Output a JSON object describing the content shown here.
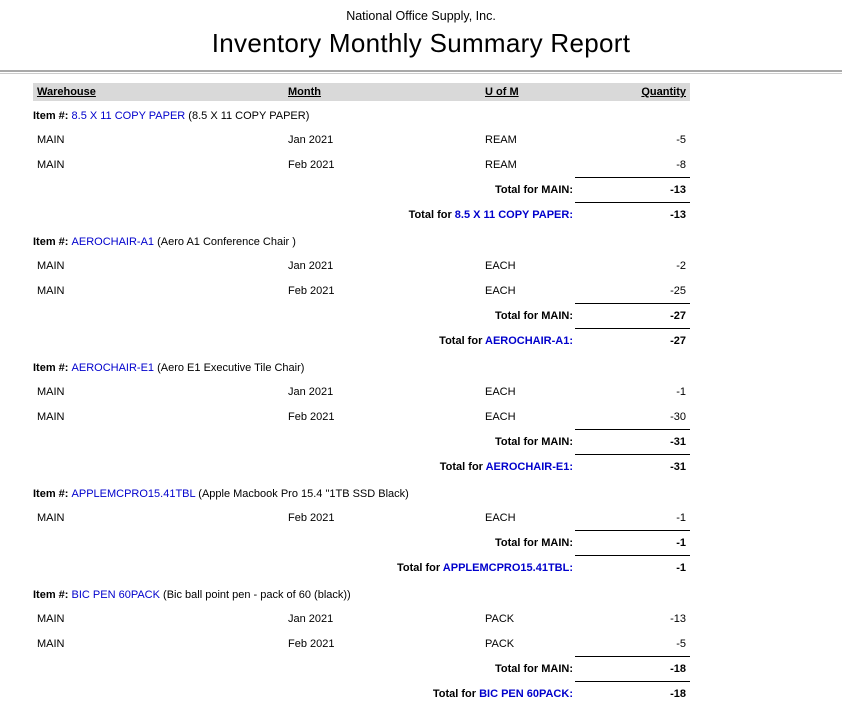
{
  "report": {
    "company": "National Office Supply, Inc.",
    "title": "Inventory Monthly Summary Report",
    "columns": [
      "Warehouse",
      "Month",
      "U of M",
      "Quantity"
    ],
    "labels": {
      "item_prefix": "Item #:",
      "total_for": "Total for",
      "colon": ":"
    },
    "colors": {
      "item_code_blue": "#0000CC",
      "header_bg": "#D9D9D9"
    },
    "groups": [
      {
        "code": "8.5 X 11 COPY PAPER",
        "desc": "(8.5 X 11 COPY PAPER)",
        "warehouse": "MAIN",
        "rows": [
          {
            "warehouse": "MAIN",
            "month": "Jan 2021",
            "uom": "REAM",
            "qty": "-5"
          },
          {
            "warehouse": "MAIN",
            "month": "Feb 2021",
            "uom": "REAM",
            "qty": "-8"
          }
        ],
        "warehouse_total": "-13",
        "item_total": "-13"
      },
      {
        "code": "AEROCHAIR-A1",
        "desc": "(Aero A1 Conference Chair )",
        "warehouse": "MAIN",
        "rows": [
          {
            "warehouse": "MAIN",
            "month": "Jan 2021",
            "uom": "EACH",
            "qty": "-2"
          },
          {
            "warehouse": "MAIN",
            "month": "Feb 2021",
            "uom": "EACH",
            "qty": "-25"
          }
        ],
        "warehouse_total": "-27",
        "item_total": "-27"
      },
      {
        "code": "AEROCHAIR-E1",
        "desc": "(Aero E1 Executive Tile Chair)",
        "warehouse": "MAIN",
        "rows": [
          {
            "warehouse": "MAIN",
            "month": "Jan 2021",
            "uom": "EACH",
            "qty": "-1"
          },
          {
            "warehouse": "MAIN",
            "month": "Feb 2021",
            "uom": "EACH",
            "qty": "-30"
          }
        ],
        "warehouse_total": "-31",
        "item_total": "-31"
      },
      {
        "code": "APPLEMCPRO15.41TBL",
        "desc": "(Apple Macbook Pro 15.4 \"1TB SSD Black)",
        "warehouse": "MAIN",
        "rows": [
          {
            "warehouse": "MAIN",
            "month": "Feb 2021",
            "uom": "EACH",
            "qty": "-1"
          }
        ],
        "warehouse_total": "-1",
        "item_total": "-1"
      },
      {
        "code": "BIC PEN 60PACK",
        "desc": "(Bic ball point pen - pack of 60 (black))",
        "warehouse": "MAIN",
        "rows": [
          {
            "warehouse": "MAIN",
            "month": "Jan 2021",
            "uom": "PACK",
            "qty": "-13"
          },
          {
            "warehouse": "MAIN",
            "month": "Feb 2021",
            "uom": "PACK",
            "qty": "-5"
          }
        ],
        "warehouse_total": "-18",
        "item_total": "-18"
      }
    ]
  }
}
